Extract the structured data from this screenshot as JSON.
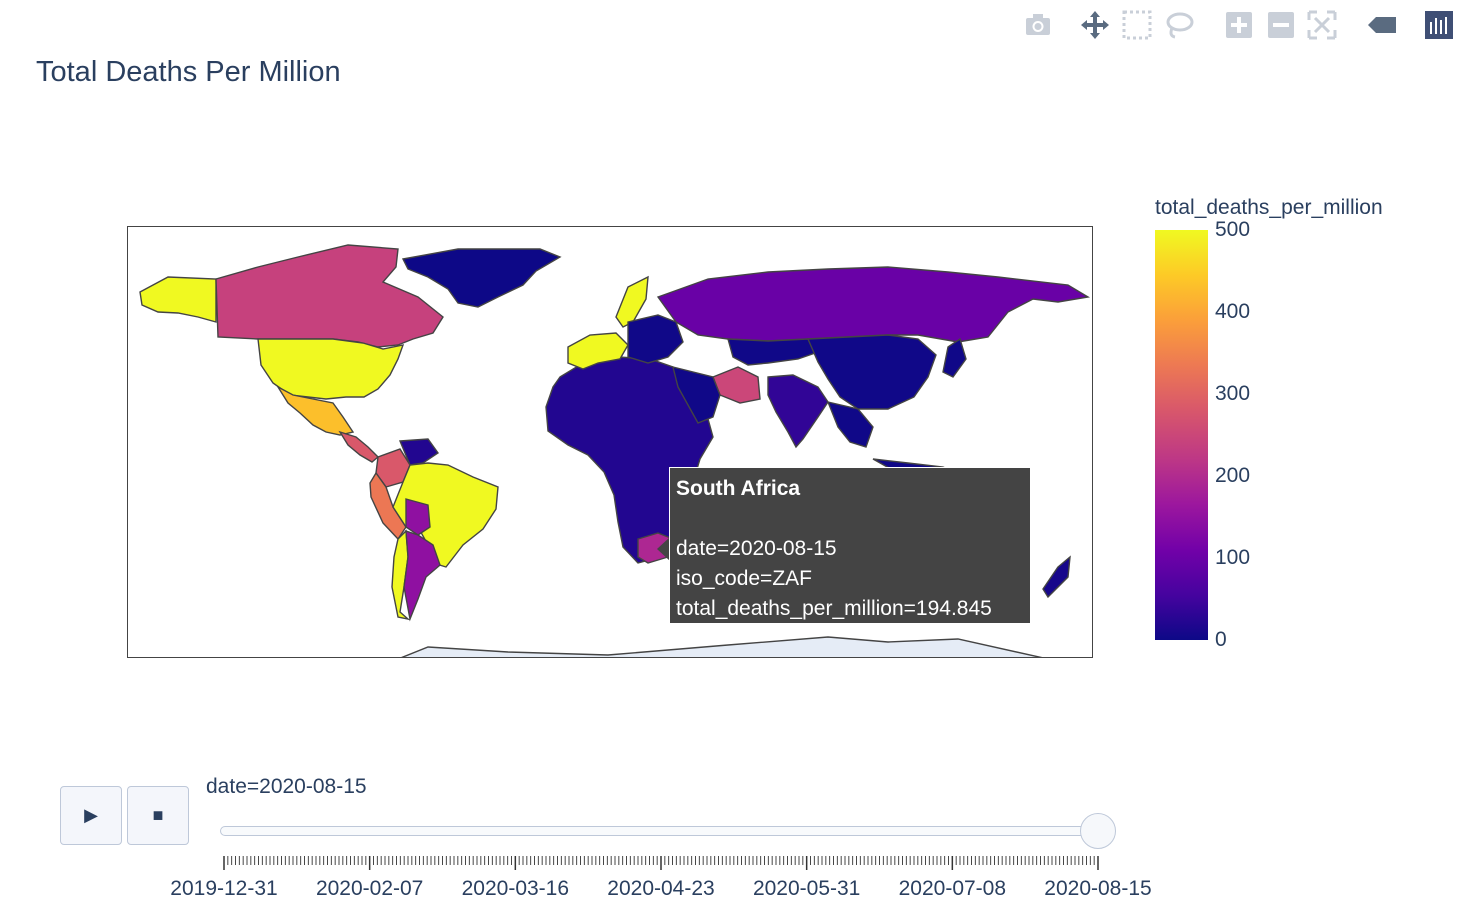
{
  "modebar": {
    "buttons": [
      {
        "name": "camera-icon",
        "title": "Download plot as a png"
      },
      {
        "name": "pan-icon",
        "title": "Pan"
      },
      {
        "name": "box-select-icon",
        "title": "Box Select"
      },
      {
        "name": "lasso-select-icon",
        "title": "Lasso Select"
      },
      {
        "name": "zoom-in-icon",
        "title": "Zoom in"
      },
      {
        "name": "zoom-out-icon",
        "title": "Zoom out"
      },
      {
        "name": "reset-view-icon",
        "title": "Reset"
      },
      {
        "name": "spike-lines-icon",
        "title": "Toggle Spike Lines"
      },
      {
        "name": "plotly-logo-icon",
        "title": "Produced with Plotly"
      }
    ]
  },
  "chart_data": {
    "type": "choropleth",
    "title": "Total Deaths Per Million",
    "colorbar": {
      "title": "total_deaths_per_million",
      "range": [
        0,
        500
      ],
      "ticks": [
        "500",
        "400",
        "300",
        "200",
        "100",
        "0"
      ],
      "colorscale": [
        "#0d0887",
        "#46039f",
        "#7201a8",
        "#9c179e",
        "#bd3786",
        "#d8576b",
        "#ed7953",
        "#fb9f3a",
        "#fdca26",
        "#f0f921"
      ]
    },
    "hover": {
      "country": "South Africa",
      "date_line": "date=2020-08-15",
      "iso_line": "iso_code=ZAF",
      "value_line": "total_deaths_per_million=194.845"
    },
    "slider": {
      "current_label": "date=2020-08-15",
      "tick_labels": [
        "2019-12-31",
        "2020-02-07",
        "2020-03-16",
        "2020-04-23",
        "2020-05-31",
        "2020-07-08",
        "2020-08-15"
      ],
      "position": 1.0
    },
    "regions": [
      {
        "name": "Canada",
        "value": 240
      },
      {
        "name": "United States",
        "value": 520
      },
      {
        "name": "Mexico",
        "value": 430
      },
      {
        "name": "Brazil",
        "value": 510
      },
      {
        "name": "Chile",
        "value": 510
      },
      {
        "name": "Peru",
        "value": 600
      },
      {
        "name": "Bolivia",
        "value": 330
      },
      {
        "name": "Colombia",
        "value": 280
      },
      {
        "name": "Argentina",
        "value": 150
      },
      {
        "name": "Greenland",
        "value": 0
      },
      {
        "name": "Alaska",
        "value": 520
      },
      {
        "name": "Russia",
        "value": 100
      },
      {
        "name": "China",
        "value": 3
      },
      {
        "name": "India",
        "value": 35
      },
      {
        "name": "Iran",
        "value": 250
      },
      {
        "name": "Africa",
        "value": 20
      },
      {
        "name": "South Africa",
        "value": 194.845
      },
      {
        "name": "Sweden",
        "value": 570
      },
      {
        "name": "Western Europe",
        "value": 520
      },
      {
        "name": "Australia",
        "value": 10
      }
    ]
  },
  "controls": {
    "play_label": "▶",
    "stop_label": "■"
  }
}
